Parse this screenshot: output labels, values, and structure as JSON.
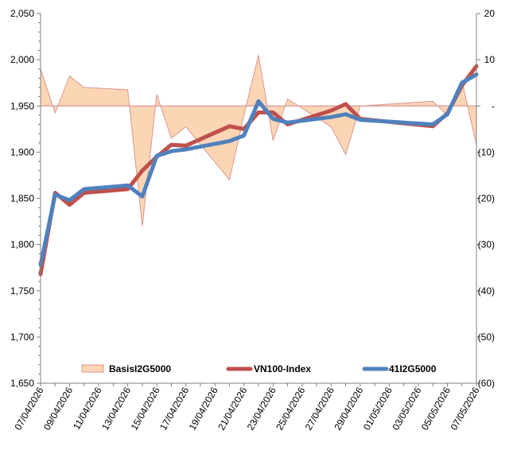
{
  "chart_data": {
    "type": "line",
    "x": [
      "07/04/2026",
      "08/04/2026",
      "09/04/2026",
      "10/04/2026",
      "13/04/2026",
      "14/04/2026",
      "15/04/2026",
      "16/04/2026",
      "17/04/2026",
      "20/04/2026",
      "21/04/2026",
      "22/04/2026",
      "23/04/2026",
      "24/04/2026",
      "27/04/2026",
      "28/04/2026",
      "29/04/2026",
      "04/05/2026",
      "05/05/2026",
      "06/05/2026",
      "07/05/2026"
    ],
    "x_tick_labels": [
      "07/04/2026",
      "09/04/2026",
      "11/04/2026",
      "13/04/2026",
      "15/04/2026",
      "17/04/2026",
      "19/04/2026",
      "21/04/2026",
      "23/04/2026",
      "25/04/2026",
      "27/04/2026",
      "29/04/2026",
      "01/05/2026",
      "03/05/2026",
      "05/05/2026",
      "07/05/2026"
    ],
    "y_left": {
      "range": [
        1650,
        2050
      ],
      "ticks": [
        1650,
        1700,
        1750,
        1800,
        1850,
        1900,
        1950,
        2000,
        2050
      ],
      "tick_labels": [
        "1,650",
        "1,700",
        "1,750",
        "1,800",
        "1,850",
        "1,900",
        "1,950",
        "2,000",
        "2,050"
      ]
    },
    "y_right": {
      "range": [
        -60,
        20
      ],
      "ticks": [
        -60,
        -50,
        -40,
        -30,
        -20,
        -10,
        0,
        10,
        20
      ],
      "tick_labels": [
        "(60)",
        "(50)",
        "(40)",
        "(30)",
        "(20)",
        "(10)",
        "-",
        "10",
        "20"
      ]
    },
    "series": [
      {
        "name": "BasisI2G5000",
        "kind": "area",
        "axis": "right",
        "color": "#fcd5b5",
        "edge_color": "#d99694",
        "points": [
          [
            "07/04/2026",
            8
          ],
          [
            "08/04/2026",
            -1.5
          ],
          [
            "09/04/2026",
            6.5
          ],
          [
            "10/04/2026",
            4
          ],
          [
            "13/04/2026",
            3.5
          ],
          [
            "14/04/2026",
            -26
          ],
          [
            "15/04/2026",
            2.5
          ],
          [
            "16/04/2026",
            -7
          ],
          [
            "17/04/2026",
            -4.5
          ],
          [
            "20/04/2026",
            -16
          ],
          [
            "21/04/2026",
            -2
          ],
          [
            "22/04/2026",
            11
          ],
          [
            "23/04/2026",
            -7.5
          ],
          [
            "24/04/2026",
            1.5
          ],
          [
            "27/04/2026",
            -4.5
          ],
          [
            "28/04/2026",
            -10.5
          ],
          [
            "29/04/2026",
            0
          ],
          [
            "04/05/2026",
            1
          ],
          [
            "05/05/2026",
            -2
          ],
          [
            "06/05/2026",
            5.5
          ],
          [
            "07/05/2026",
            -8.5
          ]
        ]
      },
      {
        "name": "VN100-Index",
        "kind": "line",
        "axis": "left",
        "color": "#c0504d",
        "points": [
          [
            "07/04/2026",
            1768
          ],
          [
            "08/04/2026",
            1856
          ],
          [
            "09/04/2026",
            1843
          ],
          [
            "10/04/2026",
            1856
          ],
          [
            "13/04/2026",
            1860
          ],
          [
            "14/04/2026",
            1880
          ],
          [
            "15/04/2026",
            1895
          ],
          [
            "16/04/2026",
            1908
          ],
          [
            "17/04/2026",
            1907
          ],
          [
            "20/04/2026",
            1928
          ],
          [
            "21/04/2026",
            1925
          ],
          [
            "22/04/2026",
            1943
          ],
          [
            "23/04/2026",
            1943
          ],
          [
            "24/04/2026",
            1930
          ],
          [
            "27/04/2026",
            1945
          ],
          [
            "28/04/2026",
            1952
          ],
          [
            "29/04/2026",
            1936
          ],
          [
            "04/05/2026",
            1928
          ],
          [
            "05/05/2026",
            1942
          ],
          [
            "06/05/2026",
            1972
          ],
          [
            "07/05/2026",
            1993
          ]
        ]
      },
      {
        "name": "41I2G5000",
        "kind": "line",
        "axis": "left",
        "color": "#4f81bd",
        "points": [
          [
            "07/04/2026",
            1778
          ],
          [
            "08/04/2026",
            1854
          ],
          [
            "09/04/2026",
            1848
          ],
          [
            "10/04/2026",
            1860
          ],
          [
            "13/04/2026",
            1864
          ],
          [
            "14/04/2026",
            1852
          ],
          [
            "15/04/2026",
            1896
          ],
          [
            "16/04/2026",
            1901
          ],
          [
            "17/04/2026",
            1903
          ],
          [
            "20/04/2026",
            1912
          ],
          [
            "21/04/2026",
            1918
          ],
          [
            "22/04/2026",
            1955
          ],
          [
            "23/04/2026",
            1936
          ],
          [
            "24/04/2026",
            1932
          ],
          [
            "27/04/2026",
            1938
          ],
          [
            "28/04/2026",
            1941
          ],
          [
            "29/04/2026",
            1935
          ],
          [
            "04/05/2026",
            1930
          ],
          [
            "05/05/2026",
            1941
          ],
          [
            "06/05/2026",
            1975
          ],
          [
            "07/05/2026",
            1984
          ]
        ]
      }
    ],
    "legend_position": "bottom",
    "grid": false
  }
}
